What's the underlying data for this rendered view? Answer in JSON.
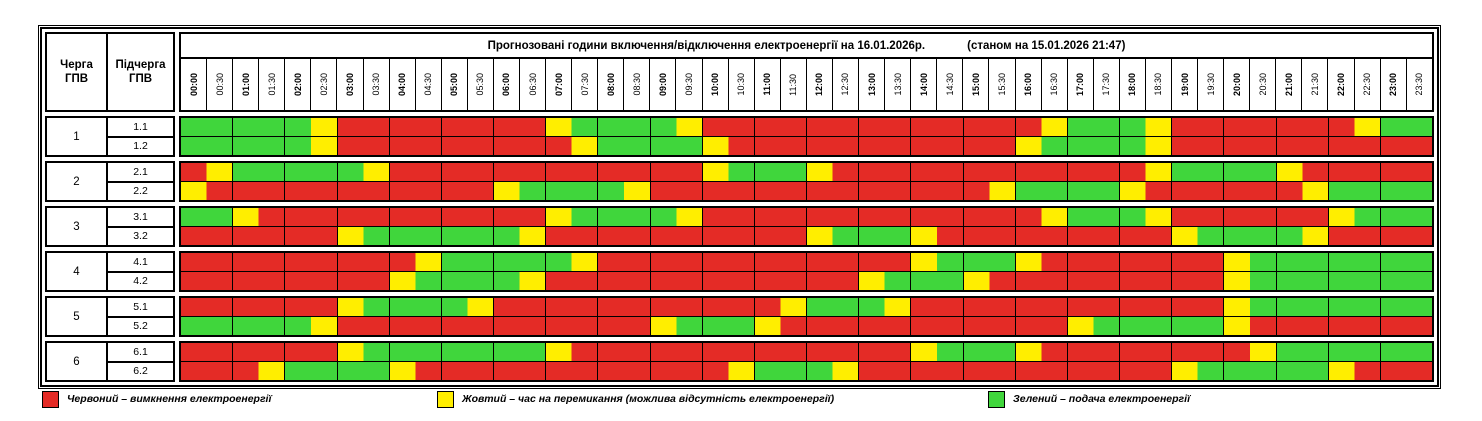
{
  "colors": {
    "R": "#e42b26",
    "Y": "#ffee00",
    "G": "#40d63c",
    "grid_border": "#000000"
  },
  "header": {
    "queue_label": "Черга\nГПВ",
    "subqueue_label": "Підчерга\nГПВ",
    "title": "Прогнозовані години включення/відключення електроенергії на 16.01.2026р.",
    "title_note": "(станом на 15.01.2026 21:47)"
  },
  "times": [
    "00:00",
    "00:30",
    "01:00",
    "01:30",
    "02:00",
    "02:30",
    "03:00",
    "03:30",
    "04:00",
    "04:30",
    "05:00",
    "05:30",
    "06:00",
    "06:30",
    "07:00",
    "07:30",
    "08:00",
    "08:30",
    "09:00",
    "09:30",
    "10:00",
    "10:30",
    "11:00",
    "11:30",
    "12:00",
    "12:30",
    "13:00",
    "13:30",
    "14:00",
    "14:30",
    "15:00",
    "15:30",
    "16:00",
    "16:30",
    "17:00",
    "17:30",
    "18:00",
    "18:30",
    "19:00",
    "19:30",
    "20:00",
    "20:30",
    "21:00",
    "21:30",
    "22:00",
    "22:30",
    "23:00",
    "23:30"
  ],
  "groups": [
    {
      "queue": "1",
      "rows": [
        {
          "label": "1.1",
          "cells": "GGGGGYRRRRRRRRYGGGGYRRRRRRRRRRRRRYGGGYRRRRRRRYGG"
        },
        {
          "label": "1.2",
          "cells": "GGGGGYRRRRRRRRRYGGGGYRRRRRRRRRRRYGGGGYRRRRRRRRRR"
        }
      ]
    },
    {
      "queue": "2",
      "rows": [
        {
          "label": "2.1",
          "cells": "RYGGGGGYRRRRRRRRRRRRYGGGYRRRRRRRRRRRRYGGGGYRRRRR"
        },
        {
          "label": "2.2",
          "cells": "YRRRRRRRRRRRYGGGGYRRRRRRRRRRRRRYGGGGYRRRRRRYGGGG"
        }
      ]
    },
    {
      "queue": "3",
      "rows": [
        {
          "label": "3.1",
          "cells": "GGYRRRRRRRRRRRYGGGGYRRRRRRRRRRRRRYGGGYRRRRRRYGGG"
        },
        {
          "label": "3.2",
          "cells": "RRRRRRYGGGGGGYRRRRRRRRRRYGGGYRRRRRRRRRYGGGGYRRRR"
        }
      ]
    },
    {
      "queue": "4",
      "rows": [
        {
          "label": "4.1",
          "cells": "RRRRRRRRRYGGGGGYRRRRRRRRRRRRYGGGYRRRRRRRYGGGGGGG"
        },
        {
          "label": "4.2",
          "cells": "RRRRRRRRYGGGGYRRRRRRRRRRRRYGGGYRRRRRRRRRYGGGGGGG"
        }
      ]
    },
    {
      "queue": "5",
      "rows": [
        {
          "label": "5.1",
          "cells": "RRRRRRYGGGGYRRRRRRRRRRRYGGGYRRRRRRRRRRRRYGGGGGGG"
        },
        {
          "label": "5.2",
          "cells": "GGGGGYRRRRRRRRRRRRYGGGYRRRRRRRRRRRYGGGGGYRRRRRRR"
        }
      ]
    },
    {
      "queue": "6",
      "rows": [
        {
          "label": "6.1",
          "cells": "RRRRRRYGGGGGGGYRRRRRRRRRRRRRYGGGYRRRRRRRRYGGGGGG"
        },
        {
          "label": "6.2",
          "cells": "RRRYGGGGYRRRRRRRRRRRRYGGGYRRRRRRRRRRRRYGGGGGYRRR"
        }
      ]
    }
  ],
  "legend": [
    {
      "key": "R",
      "label": "Червоний – вимкнення електроенергії"
    },
    {
      "key": "Y",
      "label": "Жовтий – час на перемикання (можлива відсутність електроенергії)"
    },
    {
      "key": "G",
      "label": "Зелений – подача електроенергії"
    }
  ],
  "chart_data": {
    "type": "heatmap",
    "title": "Прогнозовані години включення/відключення електроенергії на 16.01.2026р.",
    "subtitle": "(станом на 15.01.2026 21:47)",
    "x_labels": [
      "00:00",
      "00:30",
      "01:00",
      "01:30",
      "02:00",
      "02:30",
      "03:00",
      "03:30",
      "04:00",
      "04:30",
      "05:00",
      "05:30",
      "06:00",
      "06:30",
      "07:00",
      "07:30",
      "08:00",
      "08:30",
      "09:00",
      "09:30",
      "10:00",
      "10:30",
      "11:00",
      "11:30",
      "12:00",
      "12:30",
      "13:00",
      "13:30",
      "14:00",
      "14:30",
      "15:00",
      "15:30",
      "16:00",
      "16:30",
      "17:00",
      "17:30",
      "18:00",
      "18:30",
      "19:00",
      "19:30",
      "20:00",
      "20:30",
      "21:00",
      "21:30",
      "22:00",
      "22:30",
      "23:00",
      "23:30"
    ],
    "value_legend": {
      "R": "вимкнення електроенергії",
      "Y": "час на перемикання (можлива відсутність електроенергії)",
      "G": "подача електроенергії"
    },
    "rows": [
      {
        "name": "1.1",
        "statuses": "GGGGGYRRRRRRRRYGGGGYRRRRRRRRRRRRRYGGGYRRRRRRRYGG"
      },
      {
        "name": "1.2",
        "statuses": "GGGGGYRRRRRRRRRYGGGGYRRRRRRRRRRRYGGGGYRRRRRRRRRR"
      },
      {
        "name": "2.1",
        "statuses": "RYGGGGGYRRRRRRRRRRRRYGGGYRRRRRRRRRRRRYGGGGYRRRRR"
      },
      {
        "name": "2.2",
        "statuses": "YRRRRRRRRRRRYGGGGYRRRRRRRRRRRRRYGGGGYRRRRRRYGGGG"
      },
      {
        "name": "3.1",
        "statuses": "GGYRRRRRRRRRRRYGGGGYRRRRRRRRRRRRRYGGGYRRRRRRYGGG"
      },
      {
        "name": "3.2",
        "statuses": "RRRRRRYGGGGGGYRRRRRRRRRRYGGGYRRRRRRRRRYGGGGYRRRR"
      },
      {
        "name": "4.1",
        "statuses": "RRRRRRRRRYGGGGGYRRRRRRRRRRRRYGGGYRRRRRRRYGGGGGGG"
      },
      {
        "name": "4.2",
        "statuses": "RRRRRRRRYGGGGYRRRRRRRRRRRRYGGGYRRRRRRRRRYGGGGGGG"
      },
      {
        "name": "5.1",
        "statuses": "RRRRRRYGGGGYRRRRRRRRRRRYGGGYRRRRRRRRRRRRYGGGGGGG"
      },
      {
        "name": "5.2",
        "statuses": "GGGGGYRRRRRRRRRRRRYGGGYRRRRRRRRRRRYGGGGGYRRRRRRR"
      },
      {
        "name": "6.1",
        "statuses": "RRRRRRYGGGGGGGYRRRRRRRRRRRRRYGGGYRRRRRRRRYGGGGGG"
      },
      {
        "name": "6.2",
        "statuses": "RRRYGGGGYRRRRRRRRRRRRYGGGYRRRRRRRRRRRRYGGGGGYRRR"
      }
    ]
  }
}
